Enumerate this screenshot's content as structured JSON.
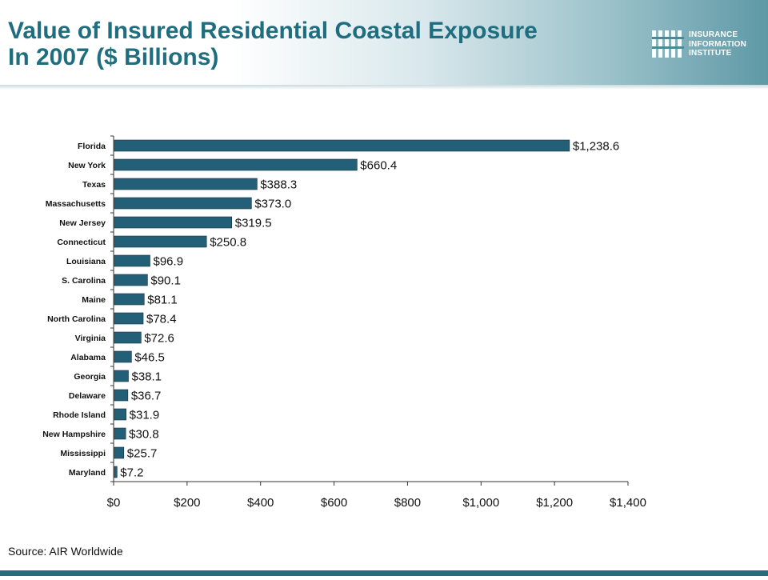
{
  "header": {
    "title_line1": "Value of Insured Residential Coastal Exposure",
    "title_line2": "In 2007 ($ Billions)",
    "logo_line1": "INSURANCE",
    "logo_line2": "INFORMATION",
    "logo_line3": "INSTITUTE"
  },
  "footer": {
    "source": "Source: AIR Worldwide"
  },
  "colors": {
    "title": "#1f6e80",
    "bar": "#245f78",
    "footer_band": "#2b6c7c"
  },
  "chart_data": {
    "type": "bar",
    "orientation": "horizontal",
    "categories": [
      "Florida",
      "New York",
      "Texas",
      "Massachusetts",
      "New Jersey",
      "Connecticut",
      "Louisiana",
      "S. Carolina",
      "Maine",
      "North Carolina",
      "Virginia",
      "Alabama",
      "Georgia",
      "Delaware",
      "Rhode Island",
      "New Hampshire",
      "Mississippi",
      "Maryland"
    ],
    "values": [
      1238.6,
      660.4,
      388.3,
      373.0,
      319.5,
      250.8,
      96.9,
      90.1,
      81.1,
      78.4,
      72.6,
      46.5,
      38.1,
      36.7,
      31.9,
      30.8,
      25.7,
      7.2
    ],
    "value_labels": [
      "$1,238.6",
      "$660.4",
      "$388.3",
      "$373.0",
      "$319.5",
      "$250.8",
      "$96.9",
      "$90.1",
      "$81.1",
      "$78.4",
      "$72.6",
      "$46.5",
      "$38.1",
      "$36.7",
      "$31.9",
      "$30.8",
      "$25.7",
      "$7.2"
    ],
    "x_ticks": [
      0,
      200,
      400,
      600,
      800,
      1000,
      1200,
      1400
    ],
    "x_tick_labels": [
      "$0",
      "$200",
      "$400",
      "$600",
      "$800",
      "$1,000",
      "$1,200",
      "$1,400"
    ],
    "xlim": [
      0,
      1400
    ],
    "grid": false,
    "legend": "none"
  }
}
